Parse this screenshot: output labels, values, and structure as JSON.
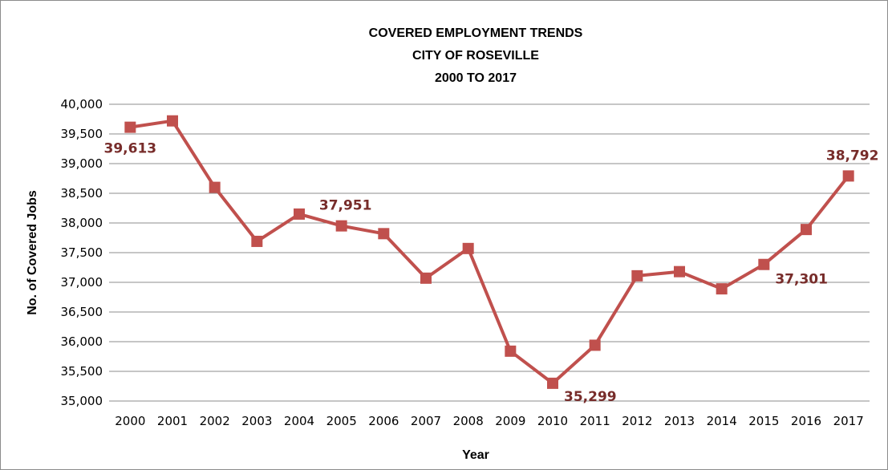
{
  "chart_data": {
    "type": "line",
    "title": [
      "COVERED EMPLOYMENT TRENDS",
      "CITY OF ROSEVILLE",
      "2000 TO 2017"
    ],
    "xlabel": "Year",
    "ylabel": "No. of Covered Jobs",
    "ylim": [
      35000,
      40000
    ],
    "ytick_step": 500,
    "grid": true,
    "legend": "none",
    "categories": [
      "2000",
      "2001",
      "2002",
      "2003",
      "2004",
      "2005",
      "2006",
      "2007",
      "2008",
      "2009",
      "2010",
      "2011",
      "2012",
      "2013",
      "2014",
      "2015",
      "2016",
      "2017"
    ],
    "series": [
      {
        "values": [
          39613,
          39720,
          38600,
          37690,
          38150,
          37951,
          37820,
          37070,
          37570,
          35840,
          35299,
          35940,
          37110,
          37180,
          36890,
          37301,
          37890,
          38792
        ],
        "color": "#c0504d"
      }
    ],
    "data_labels": [
      {
        "index": 0,
        "text": "39,613",
        "position": "below"
      },
      {
        "index": 5,
        "text": "37,951",
        "position": "above"
      },
      {
        "index": 10,
        "text": "35,299",
        "position": "right"
      },
      {
        "index": 15,
        "text": "37,301",
        "position": "right-below"
      },
      {
        "index": 17,
        "text": "38,792",
        "position": "above"
      }
    ],
    "colors": {
      "line": "#c0504d",
      "marker": "#c0504d",
      "label": "#772c2a",
      "grid": "#8c8c8c"
    }
  }
}
